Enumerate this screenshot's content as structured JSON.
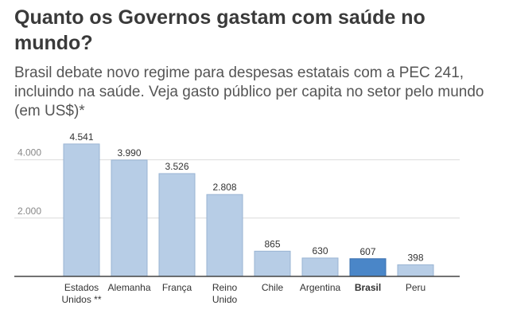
{
  "chart_data": {
    "type": "bar",
    "title": "Quanto os Governos gastam com saúde no mundo?",
    "subtitle": "Brasil debate novo regime para despesas estatais com a PEC 241, incluindo na saúde. Veja gasto público per capita no setor pelo mundo (em US$)*",
    "categories": [
      [
        "Estados",
        "Unidos **"
      ],
      [
        "Alemanha"
      ],
      [
        "França"
      ],
      [
        "Reino",
        "Unido"
      ],
      [
        "Chile"
      ],
      [
        "Argentina"
      ],
      [
        "Brasil"
      ],
      [
        "Peru"
      ]
    ],
    "values": [
      4541,
      3990,
      3526,
      2808,
      865,
      630,
      607,
      398
    ],
    "value_labels": [
      "4.541",
      "3.990",
      "3.526",
      "2.808",
      "865",
      "630",
      "607",
      "398"
    ],
    "highlight_index": 6,
    "yticks": [
      2000,
      4000
    ],
    "ytick_labels": [
      "2.000",
      "4.000"
    ],
    "ylim": [
      0,
      4800
    ],
    "grid": true,
    "colors": {
      "bar": "#b7cde6",
      "bar_stroke": "#9ab4d3",
      "highlight": "#4a86c8",
      "highlight_stroke": "#3a6fae",
      "grid": "#dcdcdc",
      "axis": "#444444",
      "tick_text": "#888888",
      "label_text": "#333333"
    }
  }
}
